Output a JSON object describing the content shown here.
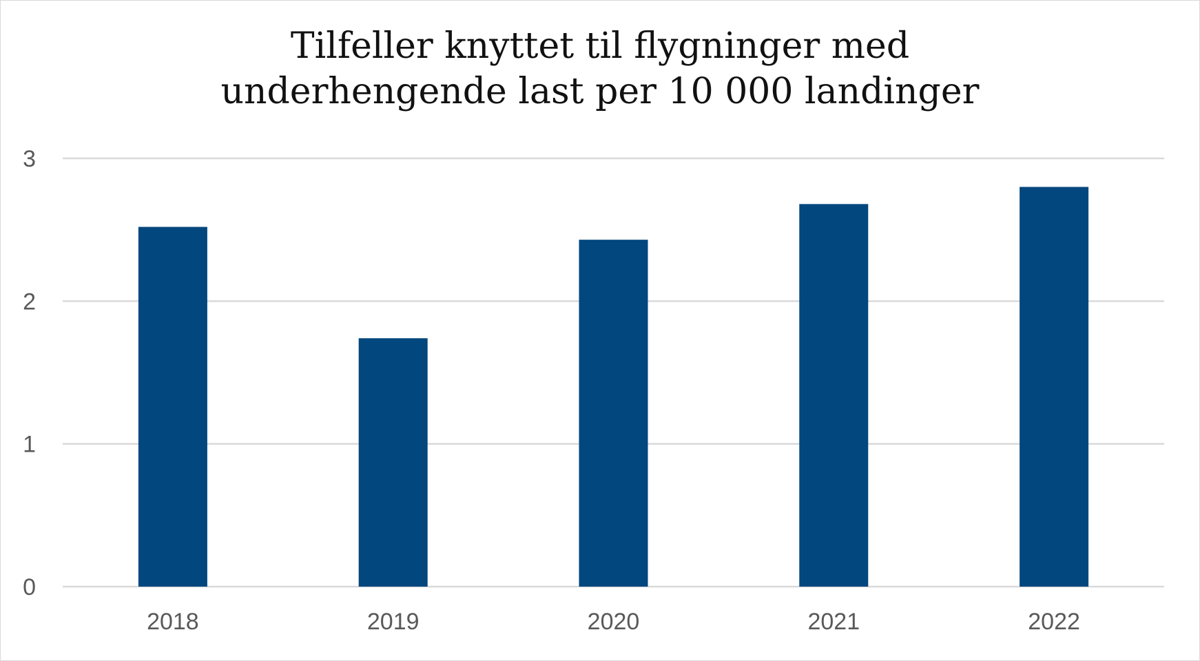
{
  "chart_data": {
    "type": "bar",
    "title": {
      "line1": "Tilfeller knyttet til flygninger med",
      "line2": "underhengende last per 10 000 landinger"
    },
    "categories": [
      "2018",
      "2019",
      "2020",
      "2021",
      "2022"
    ],
    "values": [
      2.52,
      1.74,
      2.43,
      2.68,
      2.8
    ],
    "ylim": [
      0,
      3
    ],
    "yticks": [
      "0",
      "1",
      "2",
      "3"
    ],
    "xlabel": "",
    "ylabel": "",
    "grid": true,
    "legend": "none",
    "colors": {
      "bar": "#02477d",
      "grid": "#d9d9d9",
      "tick_text": "#595959"
    }
  }
}
